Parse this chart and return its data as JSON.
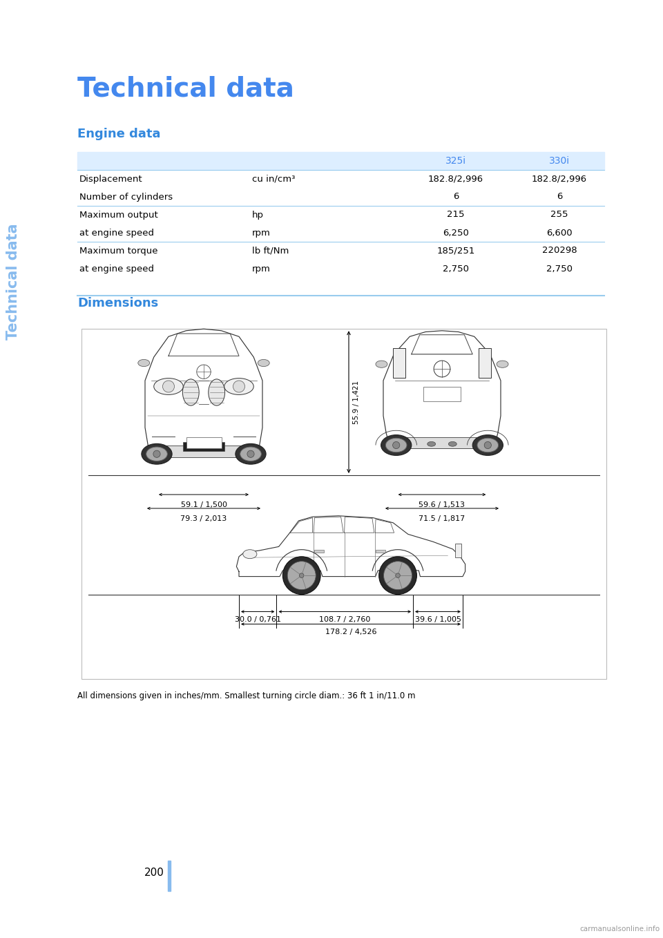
{
  "title": "Technical data",
  "section1": "Engine data",
  "section2": "Dimensions",
  "bg_color": "#ffffff",
  "title_color": "#4488ee",
  "section_color": "#3388dd",
  "sidebar_text": "Technical data",
  "sidebar_color": "#88bbee",
  "page_number": "200",
  "page_bar_color": "#88bbee",
  "table_header_bg": "#ddeeff",
  "table_header_color": "#4488ee",
  "table_line_color": "#99ccee",
  "col_headers": [
    "",
    "",
    "325i",
    "330i"
  ],
  "table_rows": [
    [
      "Displacement",
      "cu in/cm³",
      "182.8/2,996",
      "182.8/2,996"
    ],
    [
      "Number of cylinders",
      "",
      "6",
      "6"
    ],
    [
      "Maximum output",
      "hp",
      "215",
      "255"
    ],
    [
      "at engine speed",
      "rpm",
      "6,250",
      "6,600"
    ],
    [
      "Maximum torque",
      "lb ft/Nm",
      "185/251",
      "220298"
    ],
    [
      "at engine speed",
      "rpm",
      "2,750",
      "2,750"
    ]
  ],
  "footnote": "All dimensions given in inches/mm. Smallest turning circle diam.: 36 ft 1 in/11.0 m",
  "dim_front_width1": "59.1 / 1,500",
  "dim_front_width2": "79.3 / 2,013",
  "dim_rear_width1": "59.6 / 1,513",
  "dim_rear_width2": "71.5 / 1,817",
  "dim_height": "55.9 / 1,421",
  "dim_length1": "30.0 / 0,761",
  "dim_length2": "108.7 / 2,760",
  "dim_length3": "39.6 / 1,005",
  "dim_total": "178.2 / 4,526"
}
